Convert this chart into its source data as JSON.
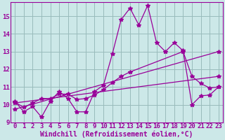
{
  "xlabel": "Windchill (Refroidissement éolien,°C)",
  "bg_color": "#cce8e8",
  "line_color": "#990099",
  "grid_color": "#99bbbb",
  "xlim": [
    -0.5,
    23.5
  ],
  "ylim": [
    9,
    15.8
  ],
  "yticks": [
    9,
    10,
    11,
    12,
    13,
    14,
    15
  ],
  "xticks": [
    0,
    1,
    2,
    3,
    4,
    5,
    6,
    7,
    8,
    9,
    10,
    11,
    12,
    13,
    14,
    15,
    16,
    17,
    18,
    19,
    20,
    21,
    22,
    23
  ],
  "line1_x": [
    0,
    1,
    2,
    3,
    4,
    5,
    6,
    7,
    8,
    9,
    10,
    11,
    12,
    13,
    14,
    15,
    16,
    17,
    18,
    19,
    20,
    21,
    22,
    23
  ],
  "line1_y": [
    10.2,
    9.6,
    9.9,
    9.3,
    10.2,
    10.75,
    10.35,
    9.6,
    9.6,
    10.75,
    11.1,
    12.85,
    14.8,
    15.45,
    14.5,
    15.6,
    13.5,
    13.0,
    13.5,
    13.05,
    10.0,
    10.5,
    10.55,
    11.0
  ],
  "line2_x": [
    0,
    1,
    2,
    3,
    4,
    5,
    6,
    7,
    8,
    9,
    10,
    11,
    12,
    13,
    19,
    20,
    21,
    22,
    23
  ],
  "line2_y": [
    10.15,
    9.85,
    10.1,
    10.35,
    10.35,
    10.6,
    10.6,
    10.3,
    10.35,
    10.55,
    10.85,
    11.25,
    11.6,
    11.85,
    13.0,
    11.6,
    11.2,
    10.95,
    11.0
  ],
  "line3_x": [
    0,
    23
  ],
  "line3_y": [
    9.75,
    13.0
  ],
  "line4_x": [
    0,
    23
  ],
  "line4_y": [
    10.1,
    11.6
  ],
  "tick_fontsize": 6.5,
  "label_fontsize": 7,
  "marker": "*",
  "markersize": 4,
  "linewidth": 0.9
}
